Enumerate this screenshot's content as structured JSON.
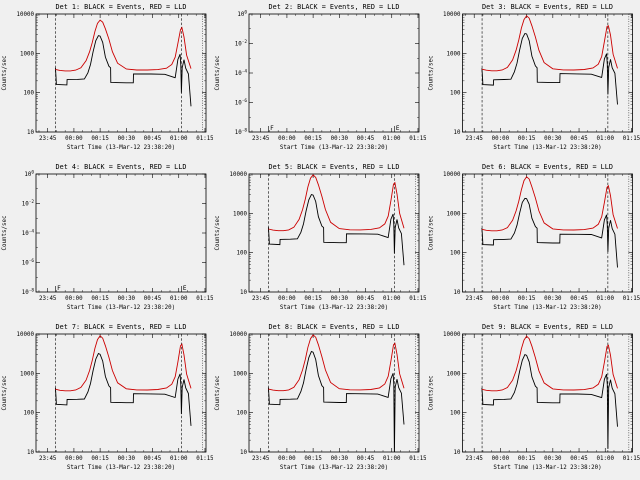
{
  "page": {
    "background": "#f0f0f0"
  },
  "figure": {
    "xlabel": "Start Time (13-Mar-12 23:38:20)",
    "ylabel": "Counts/sec",
    "x_range": [
      -21.7,
      75.6
    ],
    "x_ticks": [
      {
        "t": -15,
        "label": "23:45"
      },
      {
        "t": 0,
        "label": "00:00"
      },
      {
        "t": 15,
        "label": "00:15"
      },
      {
        "t": 30,
        "label": "00:30"
      },
      {
        "t": 45,
        "label": "00:45"
      },
      {
        "t": 60,
        "label": "01:00"
      },
      {
        "t": 75,
        "label": "01:15"
      }
    ],
    "x_minor_step": 5,
    "vlines_dashed": [
      -10.5,
      61.5
    ],
    "vlines_dotted": [
      73.5
    ],
    "colors": {
      "black": "#000000",
      "red": "#cc0000"
    },
    "x_events": [
      -10.6,
      -10.3,
      -10,
      -4,
      -3.9,
      2,
      6,
      8,
      9.5,
      11,
      12.5,
      14,
      15,
      16.5,
      18,
      20,
      21,
      21.1,
      30,
      34,
      34.1,
      44,
      52,
      57.9,
      58,
      59.5,
      60.8,
      61.2,
      61.5,
      62,
      63,
      64,
      65.5,
      67
    ],
    "x_lld": [
      -10.6,
      -8,
      -5,
      -2,
      1,
      4,
      7,
      9,
      10.5,
      12,
      13.5,
      15,
      16.5,
      18,
      20,
      22,
      25,
      30,
      36,
      42,
      48,
      53,
      56,
      58,
      59.5,
      61,
      61.8,
      63,
      64.5,
      67
    ]
  },
  "chart_data": [
    {
      "id": "det1",
      "type": "line",
      "title": "Det 1: BLACK = Events, RED = LLD",
      "ylog": true,
      "empty": false,
      "y_exp_range": [
        1,
        4
      ],
      "y_tick_step": 1,
      "y_ticks": [
        {
          "exp": 4,
          "label": "10000"
        },
        {
          "exp": 3,
          "label": "1000"
        },
        {
          "exp": 2,
          "label": "100"
        },
        {
          "exp": 1,
          "label": "10"
        }
      ],
      "series": [
        {
          "name": "Events",
          "color": "black",
          "x_key": "x_events",
          "y": [
            430,
            280,
            162,
            158,
            215,
            218,
            222,
            320,
            520,
            1100,
            2100,
            2800,
            2750,
            1900,
            800,
            470,
            430,
            182,
            178,
            178,
            300,
            298,
            293,
            240,
            242,
            700,
            950,
            500,
            100,
            430,
            690,
            420,
            300,
            45
          ]
        },
        {
          "name": "LLD",
          "color": "red",
          "x_key": "x_lld",
          "y": [
            390,
            368,
            358,
            358,
            375,
            430,
            650,
            1100,
            1900,
            3600,
            5800,
            7000,
            6200,
            4200,
            2300,
            1100,
            560,
            400,
            378,
            376,
            386,
            420,
            520,
            800,
            1800,
            4000,
            4500,
            2600,
            900,
            410
          ]
        }
      ]
    },
    {
      "id": "det2",
      "type": "line",
      "title": "Det 2: BLACK = Events, RED = LLD",
      "ylog": true,
      "empty": true,
      "y_exp_range": [
        -8,
        0
      ],
      "y_tick_step": 2,
      "y_ticks": [
        {
          "exp": 0,
          "label": "10^0"
        },
        {
          "exp": -2,
          "label": "10^-2"
        },
        {
          "exp": -4,
          "label": "10^-4"
        },
        {
          "exp": -6,
          "label": "10^-6"
        },
        {
          "exp": -8,
          "label": "10^-8"
        }
      ],
      "series": [],
      "markers": [
        {
          "label": "F",
          "t": -10.5
        },
        {
          "label": "E",
          "t": 61.5
        }
      ]
    },
    {
      "id": "det3",
      "type": "line",
      "title": "Det 3: BLACK = Events, RED = LLD",
      "ylog": true,
      "empty": false,
      "y_exp_range": [
        1,
        4
      ],
      "y_tick_step": 1,
      "y_ticks": [
        {
          "exp": 4,
          "label": "10000"
        },
        {
          "exp": 3,
          "label": "1000"
        },
        {
          "exp": 2,
          "label": "100"
        },
        {
          "exp": 1,
          "label": "10"
        }
      ],
      "series": [
        {
          "name": "Events",
          "color": "black",
          "x_key": "x_events",
          "y": [
            420,
            270,
            160,
            156,
            212,
            216,
            220,
            340,
            560,
            1200,
            2400,
            3200,
            3100,
            2100,
            850,
            480,
            430,
            185,
            180,
            180,
            305,
            300,
            295,
            245,
            248,
            720,
            980,
            520,
            90,
            440,
            700,
            430,
            310,
            50
          ]
        },
        {
          "name": "LLD",
          "color": "red",
          "x_key": "x_lld",
          "y": [
            395,
            372,
            360,
            360,
            378,
            440,
            680,
            1200,
            2200,
            4400,
            7200,
            9000,
            7800,
            5000,
            2600,
            1200,
            580,
            405,
            380,
            378,
            388,
            425,
            530,
            830,
            2000,
            4800,
            5000,
            2900,
            950,
            415
          ]
        }
      ]
    },
    {
      "id": "det4",
      "type": "line",
      "title": "Det 4: BLACK = Events, RED = LLD",
      "ylog": true,
      "empty": true,
      "y_exp_range": [
        -8,
        0
      ],
      "y_tick_step": 2,
      "y_ticks": [
        {
          "exp": 0,
          "label": "10^0"
        },
        {
          "exp": -2,
          "label": "10^-2"
        },
        {
          "exp": -4,
          "label": "10^-4"
        },
        {
          "exp": -6,
          "label": "10^-6"
        },
        {
          "exp": -8,
          "label": "10^-8"
        }
      ],
      "series": [],
      "markers": [
        {
          "label": "F",
          "t": -10.5
        },
        {
          "label": "E",
          "t": 61.5
        }
      ]
    },
    {
      "id": "det5",
      "type": "line",
      "title": "Det 5: BLACK = Events, RED = LLD",
      "ylog": true,
      "empty": false,
      "y_exp_range": [
        1,
        4
      ],
      "y_tick_step": 1,
      "y_ticks": [
        {
          "exp": 4,
          "label": "10000"
        },
        {
          "exp": 3,
          "label": "1000"
        },
        {
          "exp": 2,
          "label": "100"
        },
        {
          "exp": 1,
          "label": "10"
        }
      ],
      "series": [
        {
          "name": "Events",
          "color": "black",
          "x_key": "x_events",
          "y": [
            440,
            285,
            165,
            160,
            218,
            220,
            225,
            330,
            540,
            1150,
            2200,
            3000,
            2900,
            2000,
            820,
            475,
            435,
            183,
            179,
            179,
            302,
            300,
            294,
            242,
            244,
            710,
            960,
            510,
            95,
            435,
            695,
            425,
            305,
            48
          ]
        },
        {
          "name": "LLD",
          "color": "red",
          "x_key": "x_lld",
          "y": [
            400,
            375,
            362,
            362,
            380,
            445,
            700,
            1250,
            2300,
            4700,
            7800,
            9500,
            8200,
            5300,
            2700,
            1250,
            590,
            408,
            382,
            380,
            390,
            428,
            540,
            850,
            2100,
            5500,
            6000,
            3100,
            1000,
            420
          ]
        }
      ]
    },
    {
      "id": "det6",
      "type": "line",
      "title": "Det 6: BLACK = Events, RED = LLD",
      "ylog": true,
      "empty": false,
      "y_exp_range": [
        1,
        4
      ],
      "y_tick_step": 1,
      "y_ticks": [
        {
          "exp": 4,
          "label": "10000"
        },
        {
          "exp": 3,
          "label": "1000"
        },
        {
          "exp": 2,
          "label": "100"
        },
        {
          "exp": 1,
          "label": "10"
        }
      ],
      "series": [
        {
          "name": "Events",
          "color": "black",
          "x_key": "x_events",
          "y": [
            425,
            275,
            160,
            157,
            214,
            217,
            221,
            315,
            500,
            1000,
            1900,
            2400,
            2350,
            1700,
            750,
            460,
            420,
            180,
            176,
            176,
            295,
            293,
            290,
            238,
            240,
            680,
            920,
            490,
            105,
            420,
            670,
            410,
            295,
            42
          ]
        },
        {
          "name": "LLD",
          "color": "red",
          "x_key": "x_lld",
          "y": [
            392,
            370,
            359,
            359,
            376,
            435,
            665,
            1150,
            2050,
            4000,
            6800,
            8500,
            7400,
            4700,
            2450,
            1150,
            570,
            402,
            379,
            377,
            387,
            422,
            525,
            815,
            1900,
            4600,
            5000,
            2800,
            930,
            412
          ]
        }
      ]
    },
    {
      "id": "det7",
      "type": "line",
      "title": "Det 7: BLACK = Events, RED = LLD",
      "ylog": true,
      "empty": false,
      "y_exp_range": [
        1,
        4
      ],
      "y_tick_step": 1,
      "y_ticks": [
        {
          "exp": 4,
          "label": "10000"
        },
        {
          "exp": 3,
          "label": "1000"
        },
        {
          "exp": 2,
          "label": "100"
        },
        {
          "exp": 1,
          "label": "10"
        }
      ],
      "series": [
        {
          "name": "Events",
          "color": "black",
          "x_key": "x_events",
          "y": [
            430,
            278,
            163,
            158,
            216,
            219,
            223,
            335,
            550,
            1180,
            2300,
            3200,
            3050,
            2050,
            830,
            478,
            432,
            184,
            179,
            179,
            303,
            300,
            294,
            243,
            246,
            715,
            970,
            515,
            92,
            438,
            698,
            428,
            308,
            46
          ]
        },
        {
          "name": "LLD",
          "color": "red",
          "x_key": "x_lld",
          "y": [
            394,
            371,
            360,
            360,
            377,
            438,
            672,
            1180,
            2150,
            4300,
            7200,
            9000,
            7800,
            5000,
            2550,
            1180,
            575,
            404,
            380,
            378,
            388,
            424,
            528,
            820,
            1950,
            5000,
            5500,
            2950,
            960,
            414
          ]
        }
      ]
    },
    {
      "id": "det8",
      "type": "line",
      "title": "Det 8: BLACK = Events, RED = LLD",
      "ylog": true,
      "empty": false,
      "y_exp_range": [
        1,
        4
      ],
      "y_tick_step": 1,
      "y_ticks": [
        {
          "exp": 4,
          "label": "10000"
        },
        {
          "exp": 3,
          "label": "1000"
        },
        {
          "exp": 2,
          "label": "100"
        },
        {
          "exp": 1,
          "label": "10"
        }
      ],
      "series": [
        {
          "name": "Events",
          "color": "black",
          "x_key": "x_events",
          "y": [
            435,
            282,
            164,
            159,
            217,
            220,
            224,
            345,
            570,
            1250,
            2500,
            3600,
            3450,
            2250,
            880,
            485,
            438,
            186,
            181,
            181,
            306,
            302,
            296,
            245,
            250,
            730,
            1000,
            530,
            8,
            450,
            710,
            435,
            312,
            50
          ]
        },
        {
          "name": "LLD",
          "color": "red",
          "x_key": "x_lld",
          "y": [
            398,
            374,
            361,
            361,
            379,
            442,
            690,
            1230,
            2250,
            4600,
            7600,
            9500,
            8300,
            5300,
            2650,
            1220,
            585,
            406,
            381,
            379,
            389,
            426,
            535,
            840,
            2050,
            5300,
            5800,
            3050,
            980,
            418
          ]
        }
      ]
    },
    {
      "id": "det9",
      "type": "line",
      "title": "Det 9: BLACK = Events, RED = LLD",
      "ylog": true,
      "empty": false,
      "y_exp_range": [
        1,
        4
      ],
      "y_tick_step": 1,
      "y_ticks": [
        {
          "exp": 4,
          "label": "10000"
        },
        {
          "exp": 3,
          "label": "1000"
        },
        {
          "exp": 2,
          "label": "100"
        },
        {
          "exp": 1,
          "label": "10"
        }
      ],
      "series": [
        {
          "name": "Events",
          "color": "black",
          "x_key": "x_events",
          "y": [
            428,
            276,
            161,
            157,
            214,
            218,
            222,
            325,
            530,
            1120,
            2150,
            3000,
            2880,
            1950,
            810,
            472,
            430,
            182,
            178,
            178,
            300,
            298,
            292,
            241,
            243,
            705,
            950,
            505,
            12,
            432,
            688,
            420,
            302,
            44
          ]
        },
        {
          "name": "LLD",
          "color": "red",
          "x_key": "x_lld",
          "y": [
            393,
            370,
            359,
            359,
            376,
            436,
            668,
            1160,
            2100,
            4200,
            7000,
            8800,
            7600,
            4900,
            2500,
            1160,
            572,
            403,
            379,
            377,
            387,
            423,
            526,
            818,
            1920,
            4800,
            5200,
            2880,
            940,
            413
          ]
        }
      ]
    }
  ]
}
